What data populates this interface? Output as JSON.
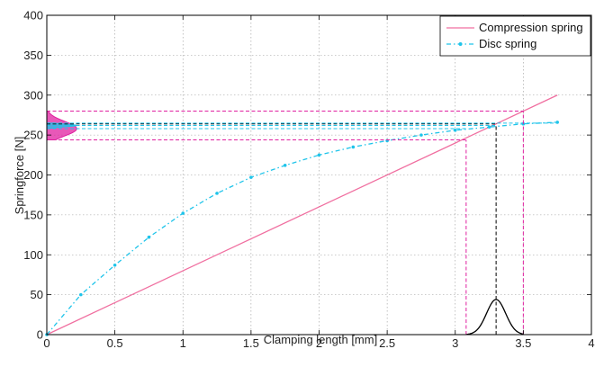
{
  "chart_data": {
    "type": "line",
    "title": "",
    "xlabel": "Clamping length [mm]",
    "ylabel": "Springforce [N]",
    "xlim": [
      0,
      4
    ],
    "ylim": [
      0,
      400
    ],
    "xticks": [
      0,
      0.5,
      1,
      1.5,
      2,
      2.5,
      3,
      3.5,
      4
    ],
    "xtick_labels": [
      "0",
      "0.5",
      "1",
      "1.5",
      "2",
      "2.5",
      "3",
      "3.5",
      "4"
    ],
    "yticks": [
      0,
      50,
      100,
      150,
      200,
      250,
      300,
      350,
      400
    ],
    "ytick_labels": [
      "0",
      "50",
      "100",
      "150",
      "200",
      "250",
      "300",
      "350",
      "400"
    ],
    "grid": true,
    "legend_position": "top-right",
    "series": [
      {
        "name": "Compression spring",
        "color": "#f06fa0",
        "style": "solid",
        "x": [
          0,
          3.75
        ],
        "y": [
          0,
          300
        ]
      },
      {
        "name": "Disc spring",
        "color": "#1fc4ea",
        "style": "dash-dot with markers",
        "x": [
          0,
          0.25,
          0.5,
          0.75,
          1,
          1.25,
          1.5,
          1.75,
          2,
          2.25,
          2.5,
          2.75,
          3,
          3.25,
          3.5,
          3.75
        ],
        "y": [
          0,
          50,
          87,
          122,
          152,
          177,
          197,
          212,
          225,
          235,
          243,
          250,
          256,
          260,
          264,
          266
        ]
      }
    ],
    "tolerance_lines": {
      "color_magenta": "#e020a0",
      "color_cyan": "#1fc4ea",
      "color_black": "#000000",
      "x_lower": 3.08,
      "x_nominal": 3.3,
      "x_upper": 3.5,
      "compression_force_lower": 244,
      "compression_force_nominal": 264,
      "compression_force_upper": 280,
      "disc_force_lower": 258,
      "disc_force_nominal": 262,
      "disc_force_upper": 265
    },
    "x_distribution": {
      "mean": 3.3,
      "sigma": 0.07,
      "peak": 44,
      "color": "#000000"
    }
  }
}
